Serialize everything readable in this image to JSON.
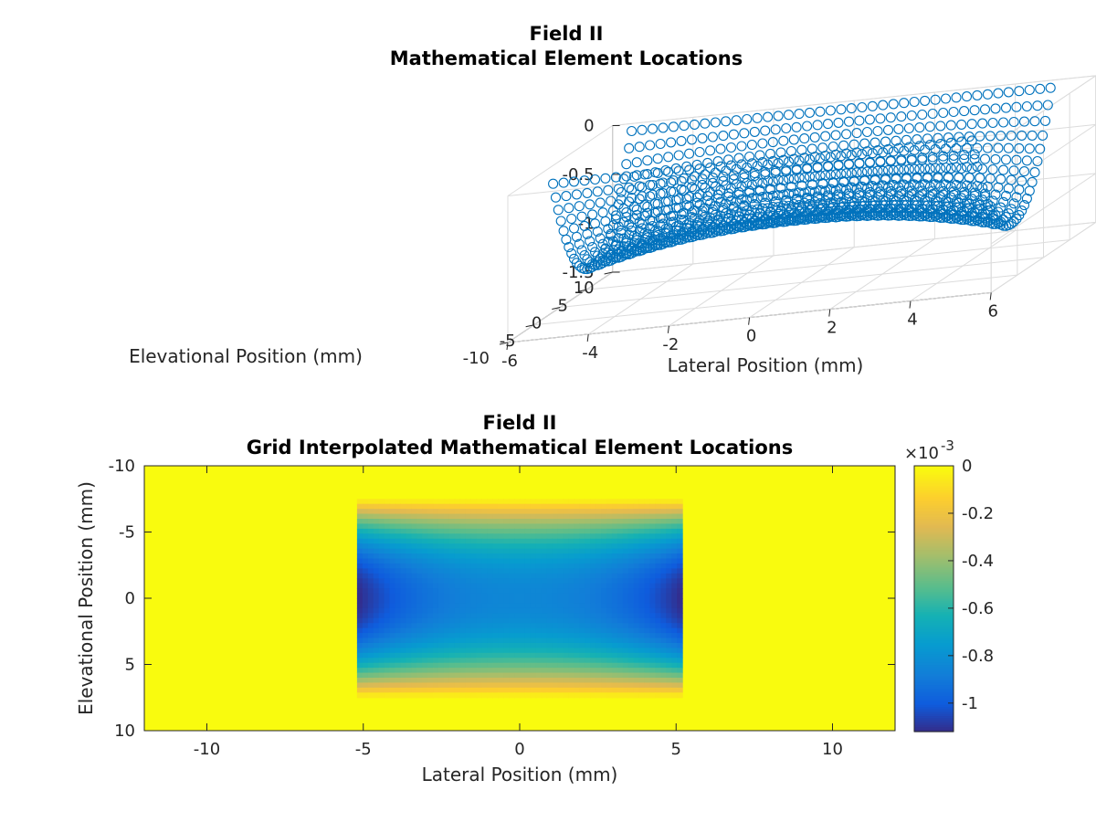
{
  "colors": {
    "marker": "#0072bd",
    "grid": "#dcdcdc",
    "axis": "#262626",
    "background": "#ffffff"
  },
  "chart_data": [
    {
      "type": "scatter",
      "subtype": "3d-surface-markers",
      "marker": "circle",
      "title_line1": "Field II",
      "title_line2": "Mathematical Element Locations",
      "xlabel": "Lateral Position (mm)",
      "ylabel": "Elevational Position (mm)",
      "zlabel": "",
      "xlim": [
        -6,
        6
      ],
      "ylim": [
        -10,
        10
      ],
      "zlim": [
        -1.5,
        0
      ],
      "xticks": [
        "-6",
        "-4",
        "-2",
        "0",
        "2",
        "4",
        "6"
      ],
      "yticks": [
        "10",
        "5",
        "0",
        "-5",
        "-10"
      ],
      "zticks": [
        "0",
        "-0.5",
        "-1",
        "-1.5"
      ],
      "grid": true,
      "x_range": [
        -5.2,
        5.2
      ],
      "y_range": [
        -7.5,
        7.5
      ],
      "z_min": -1.12,
      "z_max": 0,
      "series": [
        {
          "values": []
        }
      ]
    },
    {
      "type": "heatmap",
      "title_line1": "Field II",
      "title_line2": "Grid Interpolated Mathematical Element Locations",
      "xlabel": "Lateral Position (mm)",
      "ylabel": "Elevational Position (mm)",
      "xlim": [
        -12,
        12
      ],
      "ylim": [
        -10,
        10
      ],
      "y_reversed": true,
      "xticks": [
        "-10",
        "-5",
        "0",
        "5",
        "10"
      ],
      "yticks": [
        "-10",
        "-5",
        "0",
        "5",
        "10"
      ],
      "aperture_x": [
        -5.2,
        5.2
      ],
      "aperture_y": [
        -7.5,
        7.5
      ],
      "outside_value": 0,
      "colorbar": {
        "exponent_label": "×10",
        "exponent": "-3",
        "range": [
          -1.12,
          0
        ],
        "ticks": [
          "0",
          "-0.2",
          "-0.4",
          "-0.6",
          "-0.8",
          "-1"
        ],
        "colormap": "parula"
      }
    }
  ]
}
